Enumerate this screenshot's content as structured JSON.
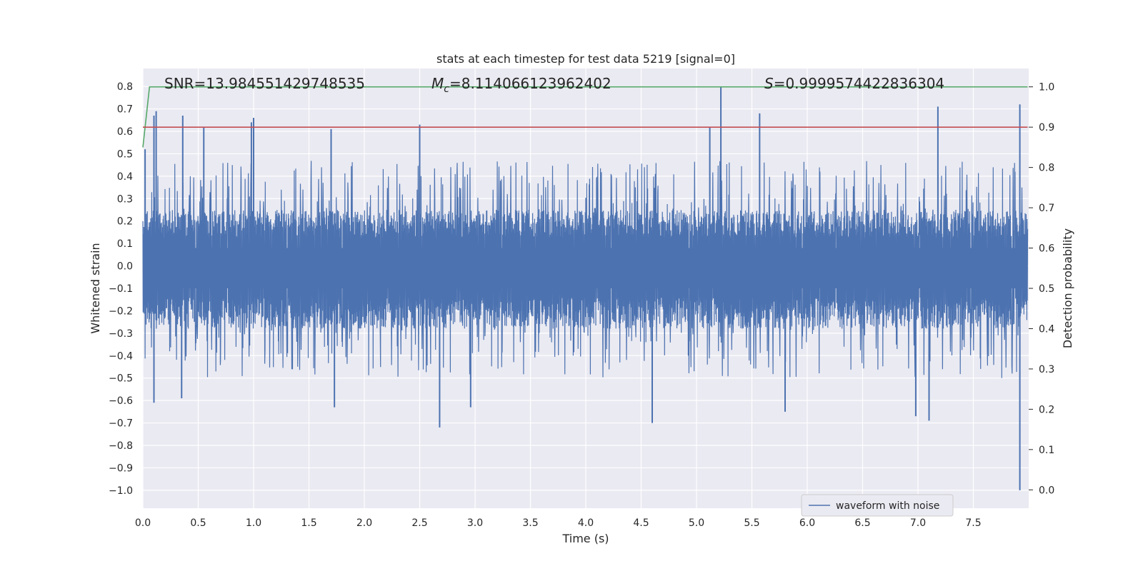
{
  "chart_data": {
    "type": "line",
    "title": "stats at each timestep for test data 5219 [signal=0]",
    "xlabel": "Time (s)",
    "ylabel": "Whitened strain",
    "y2label": "Detection probability",
    "xlim": [
      0.0,
      8.0
    ],
    "ylim": [
      -1.08,
      0.88
    ],
    "y2lim": [
      -0.0455,
      1.0455
    ],
    "xticks": [
      "0.0",
      "0.5",
      "1.0",
      "1.5",
      "2.0",
      "2.5",
      "3.0",
      "3.5",
      "4.0",
      "4.5",
      "5.0",
      "5.5",
      "6.0",
      "6.5",
      "7.0",
      "7.5"
    ],
    "yticks": [
      "0.8",
      "0.7",
      "0.6",
      "0.5",
      "0.4",
      "0.3",
      "0.2",
      "0.1",
      "0.0",
      "−0.1",
      "−0.2",
      "−0.3",
      "−0.4",
      "−0.5",
      "−0.6",
      "−0.7",
      "−0.8",
      "−0.9",
      "−1.0"
    ],
    "y2ticks": [
      "1.0",
      "0.9",
      "0.8",
      "0.7",
      "0.6",
      "0.5",
      "0.4",
      "0.3",
      "0.2",
      "0.1",
      "0.0"
    ],
    "grid": true,
    "legend": {
      "placement": "lower-right",
      "entries": [
        "waveform with noise"
      ]
    },
    "annotations": {
      "snr": "SNR=13.984551429748535",
      "mc_symbol": "M",
      "mc_sub": "c",
      "mc_value": "=8.114066123962402",
      "s_symbol": "S",
      "s_value": "=0.9999574422836304"
    },
    "series": [
      {
        "name": "waveform with noise",
        "axis": "left",
        "color": "#4c72b0",
        "kind": "noise",
        "envelope": {
          "x_range": [
            0.0,
            7.99
          ],
          "typical_max": 0.25,
          "typical_min": -0.28,
          "core": [
            -0.1,
            0.08
          ]
        },
        "spikes": [
          {
            "x": 0.02,
            "y": 0.52
          },
          {
            "x": 0.1,
            "y": 0.67
          },
          {
            "x": 0.12,
            "y": 0.69
          },
          {
            "x": 0.36,
            "y": 0.67
          },
          {
            "x": 0.55,
            "y": 0.62
          },
          {
            "x": 0.98,
            "y": 0.64
          },
          {
            "x": 1.0,
            "y": 0.66
          },
          {
            "x": 1.7,
            "y": 0.61
          },
          {
            "x": 2.5,
            "y": 0.63
          },
          {
            "x": 5.22,
            "y": 0.8
          },
          {
            "x": 5.12,
            "y": 0.62
          },
          {
            "x": 5.57,
            "y": 0.68
          },
          {
            "x": 7.18,
            "y": 0.71
          },
          {
            "x": 7.92,
            "y": 0.72
          },
          {
            "x": 0.1,
            "y": -0.61
          },
          {
            "x": 0.35,
            "y": -0.59
          },
          {
            "x": 1.73,
            "y": -0.63
          },
          {
            "x": 2.68,
            "y": -0.72
          },
          {
            "x": 2.96,
            "y": -0.63
          },
          {
            "x": 4.6,
            "y": -0.7
          },
          {
            "x": 5.8,
            "y": -0.65
          },
          {
            "x": 6.98,
            "y": -0.67
          },
          {
            "x": 7.1,
            "y": -0.69
          },
          {
            "x": 7.92,
            "y": -1.0
          }
        ]
      },
      {
        "name": "",
        "axis": "right",
        "color": "#55a868",
        "x": [
          0.0,
          0.06,
          7.99
        ],
        "y": [
          0.85,
          1.0,
          1.0
        ]
      },
      {
        "name": "",
        "axis": "right",
        "color": "#c44e52",
        "x": [
          0.0,
          7.99
        ],
        "y": [
          0.9,
          0.9
        ]
      }
    ]
  }
}
